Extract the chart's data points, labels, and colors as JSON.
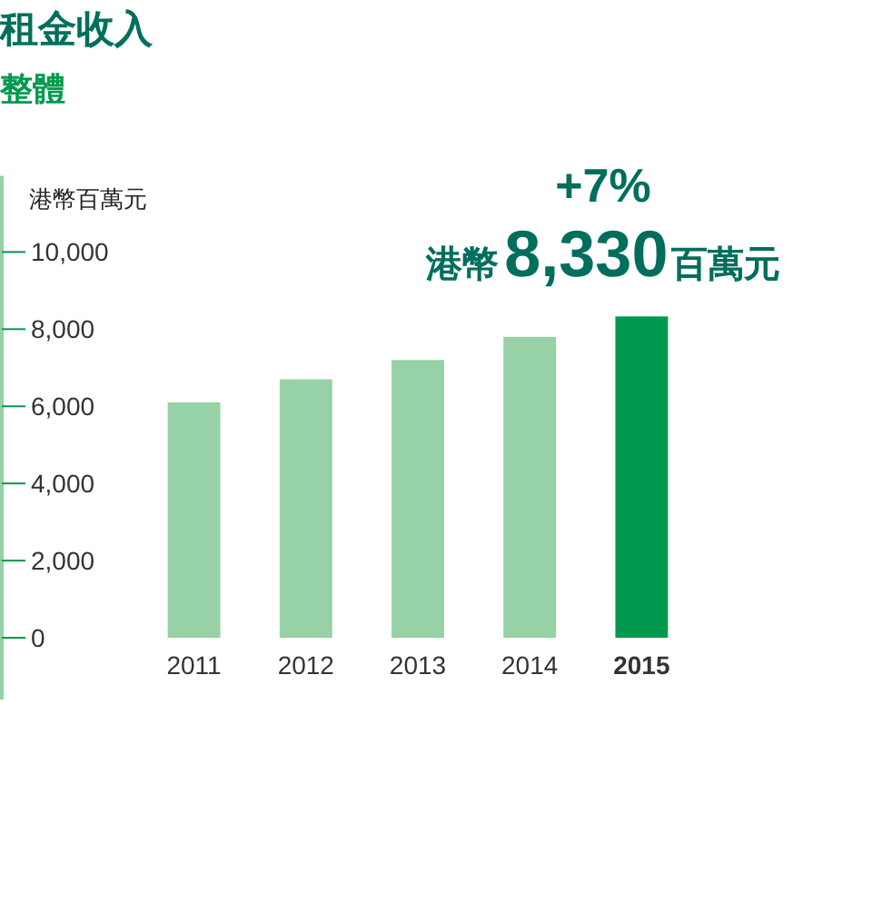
{
  "chart_data": {
    "type": "bar",
    "title": "租金收入",
    "subtitle": "整體",
    "ylabel": "港幣百萬元",
    "categories": [
      "2011",
      "2012",
      "2013",
      "2014",
      "2015"
    ],
    "values": [
      6100,
      6700,
      7200,
      7800,
      8330
    ],
    "colors": [
      "#97d1a6",
      "#97d1a6",
      "#97d1a6",
      "#97d1a6",
      "#00994d"
    ],
    "ylim": [
      0,
      10000
    ],
    "yticks": [
      {
        "value": 0,
        "label": "0"
      },
      {
        "value": 2000,
        "label": "2,000"
      },
      {
        "value": 4000,
        "label": "4,000"
      },
      {
        "value": 6000,
        "label": "6,000"
      },
      {
        "value": 8000,
        "label": "8,000"
      },
      {
        "value": 10000,
        "label": "10,000"
      }
    ],
    "grid": false,
    "annotations": [
      "+7%",
      {
        "text": "港幣8,330百萬元",
        "x": "2015",
        "y": 8330
      }
    ]
  }
}
